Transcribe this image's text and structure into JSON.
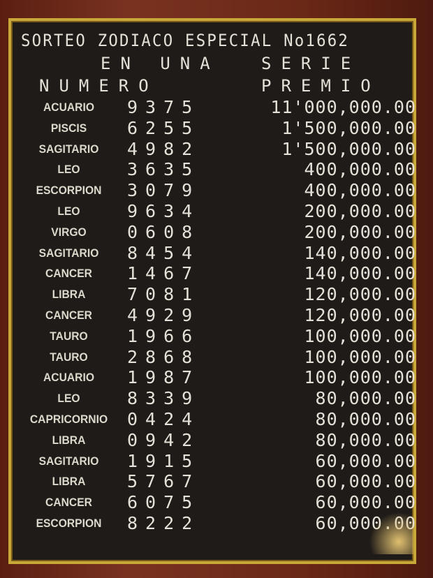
{
  "board": {
    "title": "SORTEO ZODIACO ESPECIAL No1662",
    "subtitle_left": "EN UNA",
    "subtitle_right": "SERIE",
    "col_number": "NUMERO",
    "col_prize": "PREMIO",
    "rows": [
      {
        "sign": "ACUARIO",
        "number": "9375",
        "prize": "11'000,000.00"
      },
      {
        "sign": "PISCIS",
        "number": "6255",
        "prize": "1'500,000.00"
      },
      {
        "sign": "SAGITARIO",
        "number": "4982",
        "prize": "1'500,000.00"
      },
      {
        "sign": "LEO",
        "number": "3635",
        "prize": "400,000.00"
      },
      {
        "sign": "ESCORPION",
        "number": "3079",
        "prize": "400,000.00"
      },
      {
        "sign": "LEO",
        "number": "9634",
        "prize": "200,000.00"
      },
      {
        "sign": "VIRGO",
        "number": "0608",
        "prize": "200,000.00"
      },
      {
        "sign": "SAGITARIO",
        "number": "8454",
        "prize": "140,000.00"
      },
      {
        "sign": "CANCER",
        "number": "1467",
        "prize": "140,000.00"
      },
      {
        "sign": "LIBRA",
        "number": "7081",
        "prize": "120,000.00"
      },
      {
        "sign": "CANCER",
        "number": "4929",
        "prize": "120,000.00"
      },
      {
        "sign": "TAURO",
        "number": "1966",
        "prize": "100,000.00"
      },
      {
        "sign": "TAURO",
        "number": "2868",
        "prize": "100,000.00"
      },
      {
        "sign": "ACUARIO",
        "number": "1987",
        "prize": "100,000.00"
      },
      {
        "sign": "LEO",
        "number": "8339",
        "prize": "80,000.00"
      },
      {
        "sign": "CAPRICORNIO",
        "number": "0424",
        "prize": "80,000.00"
      },
      {
        "sign": "LIBRA",
        "number": "0942",
        "prize": "80,000.00"
      },
      {
        "sign": "SAGITARIO",
        "number": "1915",
        "prize": "60,000.00"
      },
      {
        "sign": "LIBRA",
        "number": "5767",
        "prize": "60,000.00"
      },
      {
        "sign": "CANCER",
        "number": "6075",
        "prize": "60,000.00"
      },
      {
        "sign": "ESCORPION",
        "number": "8222",
        "prize": "60,000.00"
      }
    ]
  }
}
